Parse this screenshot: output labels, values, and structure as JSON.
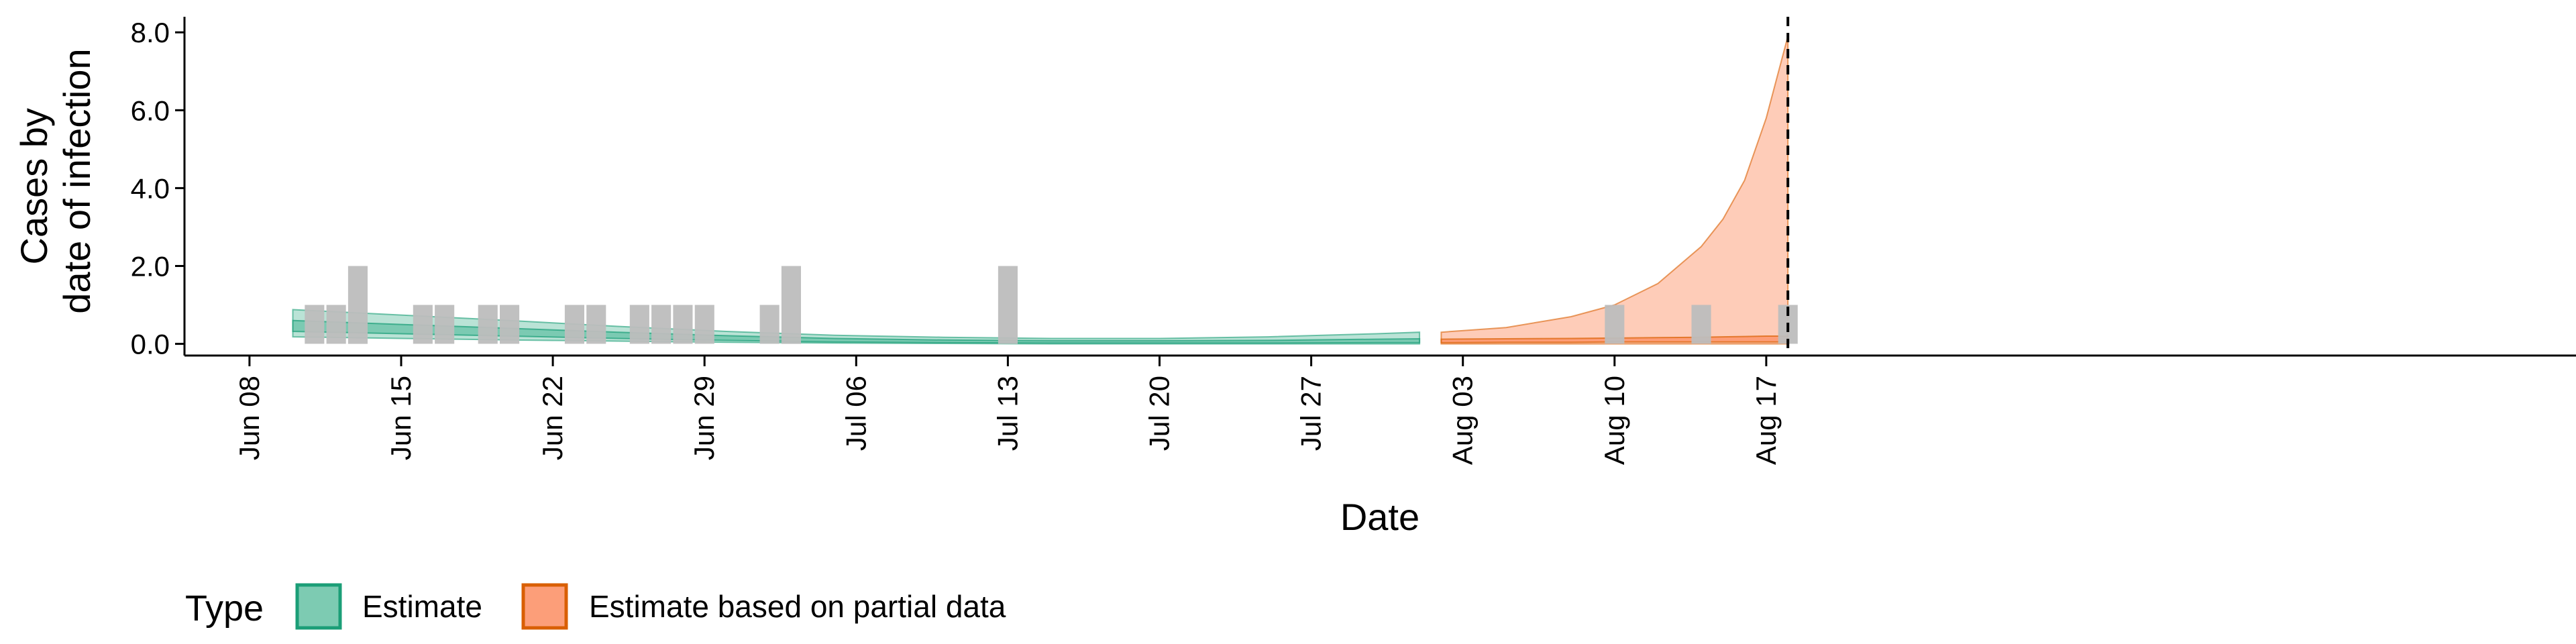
{
  "chart_data": {
    "type": "area",
    "xlabel": "Date",
    "ylabel_lines": [
      "Cases by",
      "date of infection"
    ],
    "ylim": [
      -0.3,
      8.4
    ],
    "xlim": [
      "2020-06-05",
      "2020-08-20"
    ],
    "x_ticks": [
      {
        "date": "2020-06-08",
        "label": "Jun 08"
      },
      {
        "date": "2020-06-15",
        "label": "Jun 15"
      },
      {
        "date": "2020-06-22",
        "label": "Jun 22"
      },
      {
        "date": "2020-06-29",
        "label": "Jun 29"
      },
      {
        "date": "2020-07-06",
        "label": "Jul 06"
      },
      {
        "date": "2020-07-13",
        "label": "Jul 13"
      },
      {
        "date": "2020-07-20",
        "label": "Jul 20"
      },
      {
        "date": "2020-07-27",
        "label": "Jul 27"
      },
      {
        "date": "2020-08-03",
        "label": "Aug 03"
      },
      {
        "date": "2020-08-10",
        "label": "Aug 10"
      },
      {
        "date": "2020-08-17",
        "label": "Aug 17"
      }
    ],
    "y_ticks": [
      {
        "value": 0,
        "label": "0.0"
      },
      {
        "value": 2,
        "label": "2.0"
      },
      {
        "value": 4,
        "label": "4.0"
      },
      {
        "value": 6,
        "label": "6.0"
      },
      {
        "value": 8,
        "label": "8.0"
      }
    ],
    "grid": false,
    "reported_cases": [
      {
        "date": "2020-06-11",
        "value": 1
      },
      {
        "date": "2020-06-12",
        "value": 1
      },
      {
        "date": "2020-06-13",
        "value": 2
      },
      {
        "date": "2020-06-16",
        "value": 1
      },
      {
        "date": "2020-06-17",
        "value": 1
      },
      {
        "date": "2020-06-19",
        "value": 1
      },
      {
        "date": "2020-06-20",
        "value": 1
      },
      {
        "date": "2020-06-23",
        "value": 1
      },
      {
        "date": "2020-06-24",
        "value": 1
      },
      {
        "date": "2020-06-26",
        "value": 1
      },
      {
        "date": "2020-06-27",
        "value": 1
      },
      {
        "date": "2020-06-28",
        "value": 1
      },
      {
        "date": "2020-06-29",
        "value": 1
      },
      {
        "date": "2020-07-02",
        "value": 1
      },
      {
        "date": "2020-07-03",
        "value": 2
      },
      {
        "date": "2020-07-13",
        "value": 2
      },
      {
        "date": "2020-08-10",
        "value": 1
      },
      {
        "date": "2020-08-14",
        "value": 1
      },
      {
        "date": "2020-08-18",
        "value": 1
      }
    ],
    "series": [
      {
        "name": "Estimate",
        "color": "#1b9e77",
        "fill": "#66c2a5",
        "points": [
          {
            "date": "2020-06-10",
            "outer_low": 0.18,
            "outer_high": 0.88,
            "inner_low": 0.32,
            "inner_high": 0.6
          },
          {
            "date": "2020-06-15",
            "outer_low": 0.14,
            "outer_high": 0.74,
            "inner_low": 0.26,
            "inner_high": 0.5
          },
          {
            "date": "2020-06-20",
            "outer_low": 0.1,
            "outer_high": 0.6,
            "inner_low": 0.2,
            "inner_high": 0.4
          },
          {
            "date": "2020-06-25",
            "outer_low": 0.07,
            "outer_high": 0.45,
            "inner_low": 0.14,
            "inner_high": 0.3
          },
          {
            "date": "2020-06-30",
            "outer_low": 0.04,
            "outer_high": 0.32,
            "inner_low": 0.09,
            "inner_high": 0.21
          },
          {
            "date": "2020-07-05",
            "outer_low": 0.02,
            "outer_high": 0.22,
            "inner_low": 0.05,
            "inner_high": 0.14
          },
          {
            "date": "2020-07-10",
            "outer_low": 0.01,
            "outer_high": 0.17,
            "inner_low": 0.03,
            "inner_high": 0.1
          },
          {
            "date": "2020-07-15",
            "outer_low": 0.0,
            "outer_high": 0.14,
            "inner_low": 0.02,
            "inner_high": 0.08
          },
          {
            "date": "2020-07-20",
            "outer_low": 0.0,
            "outer_high": 0.14,
            "inner_low": 0.02,
            "inner_high": 0.08
          },
          {
            "date": "2020-07-25",
            "outer_low": 0.0,
            "outer_high": 0.18,
            "inner_low": 0.02,
            "inner_high": 0.09
          },
          {
            "date": "2020-07-30",
            "outer_low": 0.0,
            "outer_high": 0.26,
            "inner_low": 0.03,
            "inner_high": 0.12
          },
          {
            "date": "2020-08-01",
            "outer_low": 0.0,
            "outer_high": 0.3,
            "inner_low": 0.03,
            "inner_high": 0.13
          }
        ]
      },
      {
        "name": "Estimate based on partial data",
        "color": "#d95f02",
        "fill": "#fc8d62",
        "points": [
          {
            "date": "2020-08-02",
            "outer_low": 0.0,
            "outer_high": 0.3,
            "inner_low": 0.03,
            "inner_high": 0.12
          },
          {
            "date": "2020-08-05",
            "outer_low": 0.0,
            "outer_high": 0.42,
            "inner_low": 0.04,
            "inner_high": 0.13
          },
          {
            "date": "2020-08-08",
            "outer_low": 0.0,
            "outer_high": 0.7,
            "inner_low": 0.04,
            "inner_high": 0.14
          },
          {
            "date": "2020-08-10",
            "outer_low": 0.0,
            "outer_high": 1.0,
            "inner_low": 0.05,
            "inner_high": 0.15
          },
          {
            "date": "2020-08-12",
            "outer_low": 0.0,
            "outer_high": 1.55,
            "inner_low": 0.05,
            "inner_high": 0.16
          },
          {
            "date": "2020-08-14",
            "outer_low": 0.0,
            "outer_high": 2.5,
            "inner_low": 0.05,
            "inner_high": 0.17
          },
          {
            "date": "2020-08-15",
            "outer_low": 0.0,
            "outer_high": 3.2,
            "inner_low": 0.05,
            "inner_high": 0.18
          },
          {
            "date": "2020-08-16",
            "outer_low": 0.0,
            "outer_high": 4.2,
            "inner_low": 0.05,
            "inner_high": 0.19
          },
          {
            "date": "2020-08-17",
            "outer_low": 0.0,
            "outer_high": 5.8,
            "inner_low": 0.05,
            "inner_high": 0.2
          },
          {
            "date": "2020-08-18",
            "outer_low": 0.0,
            "outer_high": 7.9,
            "inner_low": 0.05,
            "inner_high": 0.2
          }
        ]
      }
    ],
    "vline": {
      "date": "2020-08-18"
    },
    "legend": {
      "title": "Type",
      "position": "bottom-left",
      "entries": [
        {
          "label": "Estimate",
          "fill": "#66c2a5",
          "border": "#1b9e77"
        },
        {
          "label": "Estimate based on partial data",
          "fill": "#fc8d62",
          "border": "#d95f02"
        }
      ]
    },
    "colors": {
      "bars": "#bdbdbd",
      "axis": "#000000"
    }
  }
}
